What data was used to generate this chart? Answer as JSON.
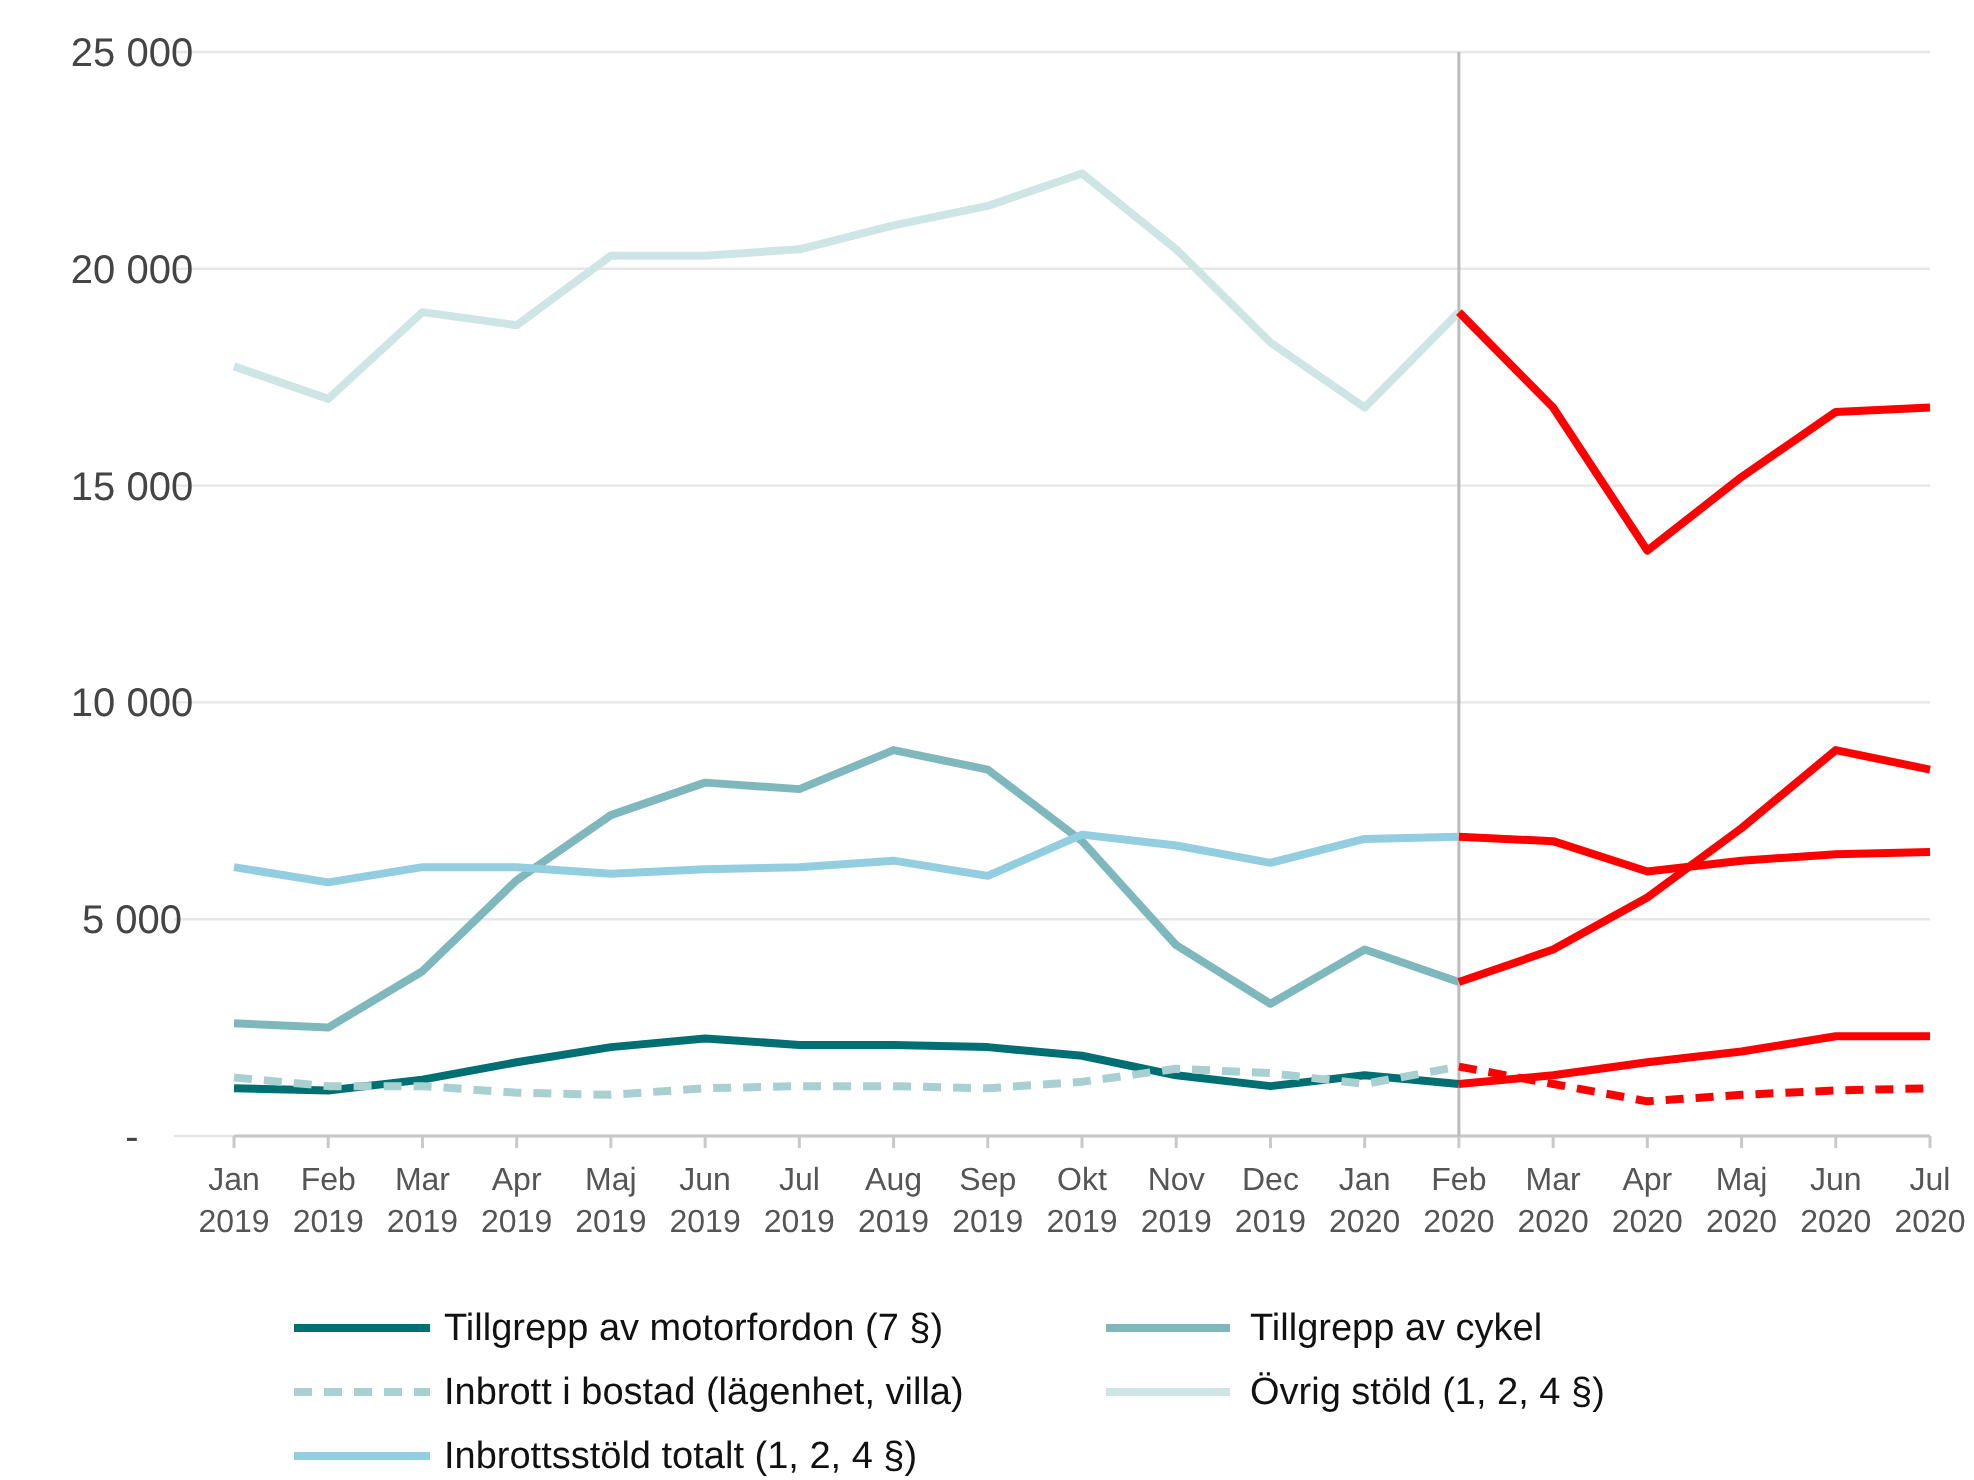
{
  "chart_data": {
    "type": "line",
    "categories": [
      "Jan 2019",
      "Feb 2019",
      "Mar 2019",
      "Apr 2019",
      "Maj 2019",
      "Jun 2019",
      "Jul 2019",
      "Aug 2019",
      "Sep 2019",
      "Okt 2019",
      "Nov 2019",
      "Dec 2019",
      "Jan 2020",
      "Feb 2020",
      "Mar 2020",
      "Apr 2020",
      "Maj 2020",
      "Jun 2020",
      "Jul 2020"
    ],
    "series": [
      {
        "name": "Tillgrepp av motorfordon (7 §)",
        "color": "#006f73",
        "values": [
          1100,
          1050,
          1300,
          1700,
          2050,
          2250,
          2100,
          2100,
          2050,
          1850,
          1400,
          1150,
          1400,
          1200,
          null,
          null,
          null,
          null,
          null
        ]
      },
      {
        "name": "Tillgrepp av cykel",
        "color": "#7fb8bc",
        "values": [
          2600,
          2500,
          3800,
          5900,
          7400,
          8150,
          8000,
          8900,
          8450,
          6800,
          4400,
          3050,
          4300,
          3550,
          null,
          null,
          null,
          null,
          null
        ]
      },
      {
        "name": "Inbrott i bostad (lägenhet, villa)",
        "color": "#a8d0d0",
        "line_style": "dashed",
        "values": [
          1350,
          1150,
          1150,
          1000,
          950,
          1100,
          1150,
          1150,
          1100,
          1250,
          1550,
          1450,
          1200,
          1600,
          null,
          null,
          null,
          null,
          null
        ]
      },
      {
        "name": "Övrig stöld  (1, 2, 4 §)",
        "color": "#cde5e4",
        "values": [
          17750,
          17000,
          19000,
          18700,
          20300,
          20300,
          20450,
          21000,
          21450,
          22200,
          20450,
          18300,
          16800,
          19000,
          null,
          null,
          null,
          null,
          null
        ]
      },
      {
        "name": "Inbrottsstöld totalt (1, 2, 4 §)",
        "color": "#92cde0",
        "values": [
          6200,
          5850,
          6200,
          6200,
          6050,
          6150,
          6200,
          6350,
          6000,
          6950,
          6700,
          6300,
          6850,
          6900,
          null,
          null,
          null,
          null,
          null
        ]
      },
      {
        "color": "#ff0000",
        "values": [
          null,
          null,
          null,
          null,
          null,
          null,
          null,
          null,
          null,
          null,
          null,
          null,
          null,
          1200,
          1400,
          1700,
          1950,
          2300,
          2300
        ]
      },
      {
        "color": "#ff0000",
        "values": [
          null,
          null,
          null,
          null,
          null,
          null,
          null,
          null,
          null,
          null,
          null,
          null,
          null,
          3550,
          4300,
          5500,
          7100,
          8900,
          8450
        ]
      },
      {
        "color": "#ff0000",
        "line_style": "dashed",
        "values": [
          null,
          null,
          null,
          null,
          null,
          null,
          null,
          null,
          null,
          null,
          null,
          null,
          null,
          1600,
          1200,
          800,
          950,
          1050,
          1100
        ]
      },
      {
        "color": "#ff0000",
        "values": [
          null,
          null,
          null,
          null,
          null,
          null,
          null,
          null,
          null,
          null,
          null,
          null,
          null,
          19000,
          16800,
          13500,
          15200,
          16700,
          16800
        ]
      },
      {
        "color": "#ff0000",
        "values": [
          null,
          null,
          null,
          null,
          null,
          null,
          null,
          null,
          null,
          null,
          null,
          null,
          null,
          6900,
          6800,
          6100,
          6350,
          6500,
          6550
        ]
      }
    ],
    "ylim": [
      0,
      25000
    ],
    "yticks": [
      {
        "value": 0,
        "label": "-"
      },
      {
        "value": 5000,
        "label": "5 000"
      },
      {
        "value": 10000,
        "label": "10 000"
      },
      {
        "value": 15000,
        "label": "15 000"
      },
      {
        "value": 20000,
        "label": "20 000"
      },
      {
        "value": 25000,
        "label": "25 000"
      }
    ],
    "grid": "y",
    "ref_lines": [
      {
        "axis": "x",
        "value": "Feb 2020",
        "color": "#bbbbbb"
      }
    ],
    "legend": "bottom",
    "line_style": "solid"
  }
}
